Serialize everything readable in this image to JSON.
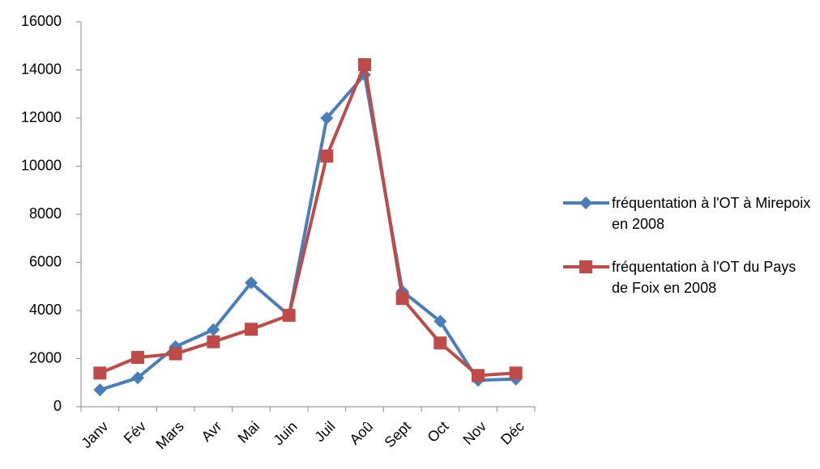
{
  "chart_data": {
    "type": "line",
    "categories": [
      "Janv",
      "Fév",
      "Mars",
      "Avr",
      "Mai",
      "Juin",
      "Juil",
      "Aoû",
      "Sept",
      "Oct",
      "Nov",
      "Déc"
    ],
    "series": [
      {
        "name": "fréquentation à l'OT à Mirepoix en 2008",
        "color": "#4a7ebb",
        "marker": "diamond",
        "values": [
          700,
          1200,
          2500,
          3200,
          5150,
          3800,
          12000,
          13800,
          4800,
          3550,
          1100,
          1150
        ]
      },
      {
        "name": "fréquentation à l'OT du Pays de Foix en 2008",
        "color": "#be4b48",
        "marker": "square",
        "values": [
          1400,
          2050,
          2200,
          2700,
          3220,
          3800,
          10420,
          14220,
          4500,
          2650,
          1300,
          1400
        ]
      }
    ],
    "ylim": [
      0,
      16000
    ],
    "yticks": [
      0,
      2000,
      4000,
      6000,
      8000,
      10000,
      12000,
      14000,
      16000
    ],
    "legend": "right"
  }
}
